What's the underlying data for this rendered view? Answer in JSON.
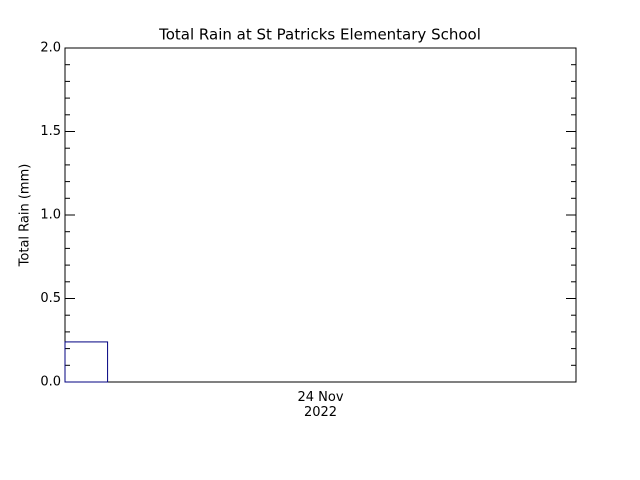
{
  "chart_data": {
    "type": "histogram",
    "title": "Total Rain at St Patricks Elementary School",
    "y_label": "Total Rain (mm)",
    "bins": [
      0,
      2
    ],
    "values": [
      0.24
    ],
    "color": "#000080",
    "xlim": [
      0,
      24
    ],
    "xticks": [
      {
        "value": 12,
        "label": "24 Nov\n2022"
      }
    ],
    "ylim": [
      0,
      2
    ],
    "yticks": [
      {
        "value": 0,
        "label": "0.0"
      },
      {
        "value": 0.5,
        "label": "0.5"
      },
      {
        "value": 1,
        "label": "1.0"
      },
      {
        "value": 1.5,
        "label": "1.5"
      },
      {
        "value": 2,
        "label": "2.0"
      }
    ],
    "yminorticks": [
      0.1,
      0.2,
      0.3,
      0.4,
      0.6,
      0.7,
      0.8,
      0.9,
      1.1,
      1.2,
      1.3,
      1.4,
      1.6,
      1.7,
      1.8,
      1.9
    ],
    "grid": false
  }
}
